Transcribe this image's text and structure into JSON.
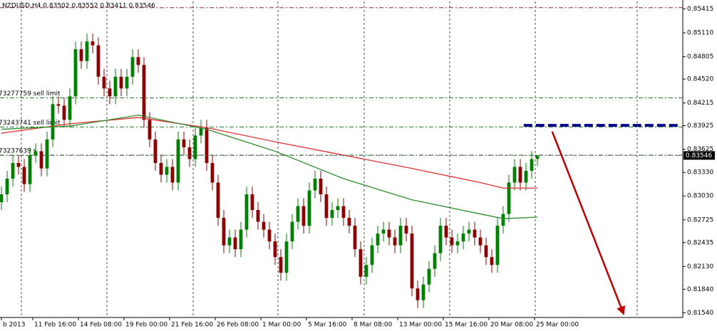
{
  "chart_data": {
    "type": "candlestick",
    "title": "NZDUSD,H4  0.83502 0.83552 0.83411 0.83546",
    "up_color": "#008000",
    "down_color": "#8b0000",
    "xlim": [
      -0.25,
      119.5
    ],
    "ylim": [
      0.8148,
      0.8551
    ],
    "xticks": [
      {
        "value": 0,
        "label": "b 2013"
      },
      {
        "value": 5.5,
        "label": "11 Feb 16:00"
      },
      {
        "value": 13.5,
        "label": "14 Feb 08:00"
      },
      {
        "value": 21.5,
        "label": "19 Feb 00:00"
      },
      {
        "value": 29.5,
        "label": "21 Feb 16:00"
      },
      {
        "value": 37.5,
        "label": "26 Feb 08:00"
      },
      {
        "value": 45.5,
        "label": "1 Mar 00:00"
      },
      {
        "value": 53.5,
        "label": "5 Mar 16:00"
      },
      {
        "value": 61.5,
        "label": "8 Mar 08:00"
      },
      {
        "value": 69.5,
        "label": "13 Mar 00:00"
      },
      {
        "value": 77.5,
        "label": "15 Mar 16:00"
      },
      {
        "value": 85.5,
        "label": "20 Mar 08:00"
      },
      {
        "value": 93.5,
        "label": "25 Mar 00:00"
      }
    ],
    "yticks": [
      0.85415,
      {
        "value": 0.8511,
        "label": "0.85110"
      },
      0.84805,
      {
        "value": 0.8452,
        "label": "0.84520"
      },
      0.84215,
      0.83925,
      0.83625,
      {
        "value": 0.8333,
        "label": "0.83330"
      },
      {
        "value": 0.8303,
        "label": "0.83030"
      },
      0.82725,
      0.82435,
      {
        "value": 0.8213,
        "label": "0.82130"
      },
      {
        "value": 0.8184,
        "label": "0.81840"
      },
      {
        "value": 0.8154,
        "label": "0.81540"
      }
    ],
    "open": [
      0.8295,
      0.8305,
      0.8325,
      0.8345,
      0.834,
      0.8318,
      0.8355,
      0.836,
      0.8338,
      0.8375,
      0.842,
      0.8418,
      0.84,
      0.843,
      0.849,
      0.8475,
      0.85,
      0.8495,
      0.8455,
      0.844,
      0.843,
      0.8455,
      0.844,
      0.8455,
      0.848,
      0.847,
      0.84,
      0.8375,
      0.8345,
      0.833,
      0.834,
      0.832,
      0.8375,
      0.8365,
      0.835,
      0.838,
      0.839,
      0.8345,
      0.832,
      0.8275,
      0.824,
      0.825,
      0.8235,
      0.826,
      0.8305,
      0.8285,
      0.827,
      0.826,
      0.8245,
      0.8225,
      0.8205,
      0.8245,
      0.827,
      0.829,
      0.8265,
      0.831,
      0.8325,
      0.8305,
      0.8275,
      0.8285,
      0.829,
      0.8275,
      0.8265,
      0.8235,
      0.82,
      0.8215,
      0.824,
      0.8255,
      0.826,
      0.825,
      0.824,
      0.8265,
      0.8255,
      0.8185,
      0.817,
      0.819,
      0.821,
      0.823,
      0.8265,
      0.825,
      0.824,
      0.8245,
      0.8255,
      0.826,
      0.825,
      0.824,
      0.8225,
      0.8215,
      0.8265,
      0.828,
      0.832,
      0.834,
      0.832,
      0.8335,
      0.83502
    ],
    "high": [
      0.8315,
      0.8335,
      0.8355,
      0.8355,
      0.835,
      0.8365,
      0.837,
      0.837,
      0.8385,
      0.843,
      0.843,
      0.8428,
      0.844,
      0.85,
      0.85,
      0.851,
      0.851,
      0.8505,
      0.8465,
      0.845,
      0.8465,
      0.8465,
      0.8465,
      0.849,
      0.849,
      0.848,
      0.841,
      0.8385,
      0.8355,
      0.835,
      0.835,
      0.8385,
      0.8385,
      0.8375,
      0.839,
      0.84,
      0.84,
      0.8355,
      0.833,
      0.8285,
      0.826,
      0.826,
      0.827,
      0.8315,
      0.8315,
      0.8295,
      0.828,
      0.827,
      0.8255,
      0.8235,
      0.8255,
      0.828,
      0.83,
      0.83,
      0.832,
      0.8335,
      0.8335,
      0.8315,
      0.8295,
      0.83,
      0.83,
      0.8285,
      0.8275,
      0.8245,
      0.8225,
      0.825,
      0.8265,
      0.827,
      0.827,
      0.826,
      0.8275,
      0.8275,
      0.8265,
      0.8195,
      0.82,
      0.822,
      0.824,
      0.8275,
      0.8275,
      0.826,
      0.8255,
      0.8265,
      0.827,
      0.827,
      0.826,
      0.825,
      0.8235,
      0.8275,
      0.829,
      0.833,
      0.835,
      0.835,
      0.8345,
      0.836,
      0.83552
    ],
    "low": [
      0.8285,
      0.8295,
      0.8315,
      0.833,
      0.8308,
      0.8308,
      0.8345,
      0.8328,
      0.8328,
      0.8365,
      0.8408,
      0.839,
      0.839,
      0.842,
      0.8465,
      0.8465,
      0.8485,
      0.8445,
      0.843,
      0.842,
      0.842,
      0.843,
      0.843,
      0.8445,
      0.846,
      0.839,
      0.8365,
      0.8335,
      0.832,
      0.832,
      0.831,
      0.831,
      0.8355,
      0.834,
      0.834,
      0.837,
      0.8335,
      0.831,
      0.8265,
      0.823,
      0.823,
      0.8225,
      0.8225,
      0.825,
      0.8275,
      0.826,
      0.825,
      0.8235,
      0.8215,
      0.8195,
      0.8195,
      0.8235,
      0.826,
      0.8255,
      0.8255,
      0.83,
      0.8295,
      0.8265,
      0.8265,
      0.8275,
      0.8265,
      0.8255,
      0.8225,
      0.819,
      0.819,
      0.8205,
      0.823,
      0.8245,
      0.824,
      0.823,
      0.823,
      0.8245,
      0.8175,
      0.816,
      0.816,
      0.818,
      0.82,
      0.822,
      0.824,
      0.823,
      0.823,
      0.8235,
      0.8245,
      0.824,
      0.823,
      0.8215,
      0.8205,
      0.8205,
      0.8255,
      0.827,
      0.831,
      0.831,
      0.831,
      0.8325,
      0.83411
    ],
    "close": [
      0.8305,
      0.8325,
      0.8345,
      0.834,
      0.8318,
      0.8355,
      0.836,
      0.8338,
      0.8375,
      0.842,
      0.8418,
      0.84,
      0.843,
      0.849,
      0.8475,
      0.85,
      0.8495,
      0.8455,
      0.844,
      0.843,
      0.8455,
      0.844,
      0.8455,
      0.848,
      0.847,
      0.84,
      0.8375,
      0.8345,
      0.833,
      0.834,
      0.832,
      0.8375,
      0.8365,
      0.835,
      0.838,
      0.839,
      0.8345,
      0.832,
      0.8275,
      0.824,
      0.825,
      0.8235,
      0.826,
      0.8305,
      0.8285,
      0.827,
      0.826,
      0.8245,
      0.8225,
      0.8205,
      0.8245,
      0.827,
      0.829,
      0.8265,
      0.831,
      0.8325,
      0.8305,
      0.8275,
      0.8285,
      0.829,
      0.8275,
      0.8265,
      0.8235,
      0.82,
      0.8215,
      0.824,
      0.8255,
      0.826,
      0.825,
      0.824,
      0.8265,
      0.8255,
      0.8185,
      0.817,
      0.819,
      0.821,
      0.823,
      0.8265,
      0.825,
      0.824,
      0.8245,
      0.8255,
      0.826,
      0.825,
      0.824,
      0.8225,
      0.8215,
      0.8265,
      0.828,
      0.832,
      0.834,
      0.832,
      0.8335,
      0.835,
      0.83546
    ],
    "lines": [
      {
        "color": "#e03030",
        "x": [
          0,
          12,
          24,
          36,
          48,
          60,
          72,
          84,
          88,
          94
        ],
        "values": [
          0.8383,
          0.8395,
          0.8403,
          0.839,
          0.8372,
          0.8355,
          0.8338,
          0.832,
          0.8313,
          0.8313
        ]
      },
      {
        "color": "#2e8b2e",
        "x": [
          0,
          12,
          24,
          36,
          48,
          60,
          72,
          84,
          88,
          94
        ],
        "values": [
          0.8388,
          0.8392,
          0.8406,
          0.8388,
          0.836,
          0.8325,
          0.8298,
          0.828,
          0.8274,
          0.8276
        ]
      }
    ],
    "levels": [
      {
        "value": 0.8543,
        "color": "#8b0000"
      },
      {
        "value": 0.8428,
        "color": "#006400",
        "label": "73277759 sell limit"
      },
      {
        "value": 0.8391,
        "color": "#006400",
        "label": "73243741 sell limit"
      },
      {
        "value": 0.8355,
        "color": "#006400",
        "label": "73237639 s"
      }
    ],
    "target_line": {
      "value": 0.8393,
      "x": [
        91.6,
        119.1
      ],
      "color": "#00008b"
    },
    "arrow": {
      "x": [
        96.6,
        109.1
      ],
      "values": [
        0.8385,
        0.8153
      ],
      "color": "#c00000"
    }
  }
}
